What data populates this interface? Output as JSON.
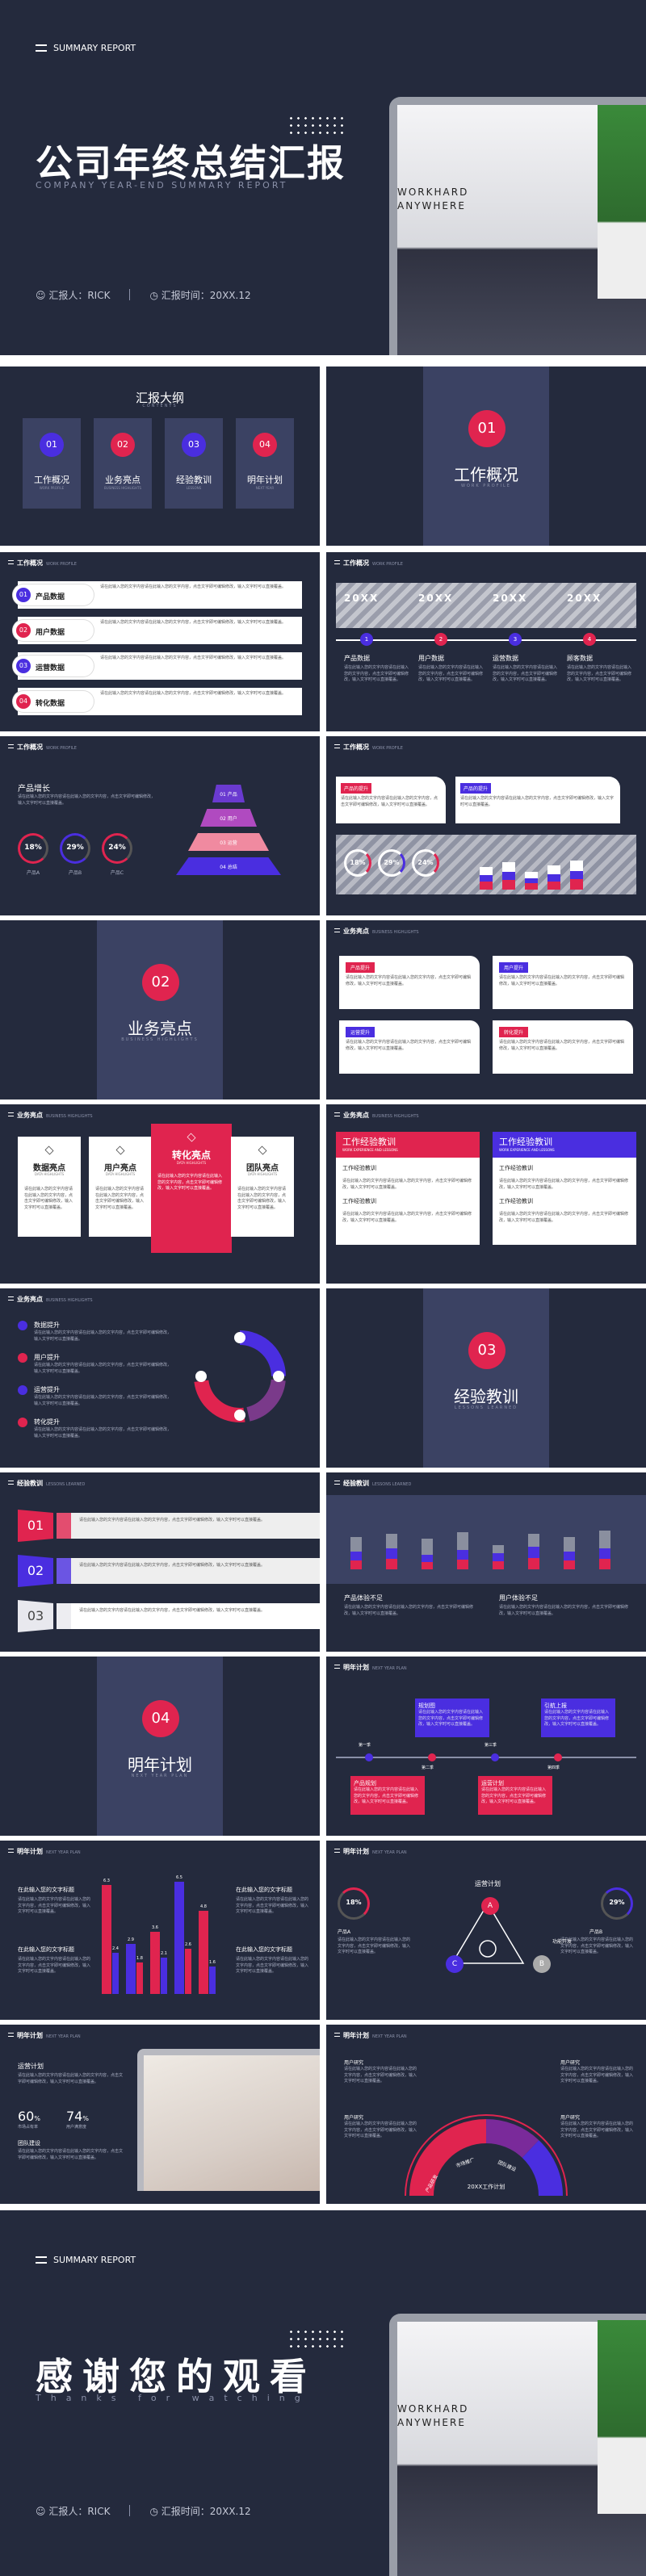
{
  "cover": {
    "menu": "SUMMARY REPORT",
    "title": "公司年终总结汇报",
    "subtitle": "COMPANY YEAR-END SUMMARY REPORT",
    "reporter": "汇报人：RICK",
    "date": "汇报时间：20XX.12",
    "screen_text": "WORKHARD ANYWHERE"
  },
  "agenda": {
    "title": "汇报大纲",
    "subtitle": "CONTENTS",
    "items": [
      {
        "num": "01",
        "label": "工作概况",
        "en": "WORK PROFILE"
      },
      {
        "num": "02",
        "label": "业务亮点",
        "en": "BUSINESS HIGHLIGHTS"
      },
      {
        "num": "03",
        "label": "经验教训",
        "en": "LESSONS"
      },
      {
        "num": "04",
        "label": "明年计划",
        "en": "NEXT YEAR"
      }
    ]
  },
  "section1": {
    "num": "01",
    "title": "工作概况",
    "en": "WORK PROFILE"
  },
  "section2": {
    "num": "02",
    "title": "业务亮点",
    "en": "BUSINESS HIGHLIGHTS"
  },
  "section3": {
    "num": "03",
    "title": "经验教训",
    "en": "LESSONS LEARNED"
  },
  "section4": {
    "num": "04",
    "title": "明年计划",
    "en": "NEXT YEAR PLAN"
  },
  "h_work": "工作概况",
  "h_work_en": "WORK PROFILE",
  "h_biz": "业务亮点",
  "h_biz_en": "BUSINESS HIGHLIGHTS",
  "h_lesson": "经验教训",
  "h_lesson_en": "LESSONS LEARNED",
  "h_plan": "明年计划",
  "h_plan_en": "NEXT YEAR PLAN",
  "body": "请在此输入您的文字内容请在此输入您的文字内容，点击文字即可编辑修改，输入文字时可以直接覆盖。",
  "s3": {
    "items": [
      {
        "n": "01",
        "label": "产品数据"
      },
      {
        "n": "02",
        "label": "用户数据"
      },
      {
        "n": "03",
        "label": "运营数据"
      },
      {
        "n": "04",
        "label": "转化数据"
      }
    ]
  },
  "s4": {
    "years": [
      "20XX",
      "20XX",
      "20XX",
      "20XX"
    ],
    "labels": [
      "产品数据",
      "用户数据",
      "运营数据",
      "顾客数据"
    ],
    "nums": [
      "1",
      "2",
      "3",
      "4"
    ]
  },
  "s5": {
    "title": "产品增长",
    "pct": [
      "18%",
      "29%",
      "24%"
    ],
    "plabels": [
      "产品A",
      "产品B",
      "产品C"
    ],
    "pyr": [
      "01 产品",
      "02 用户",
      "03 运营",
      "04 总结"
    ]
  },
  "s6": {
    "c1": "产品的提升",
    "c2": "产品的提升",
    "pct": [
      "18%",
      "29%",
      "24%"
    ]
  },
  "s8": {
    "cards": [
      "产品提升",
      "用户提升",
      "运营提升",
      "转化提升"
    ]
  },
  "s9": {
    "cols": [
      "数据亮点",
      "用户亮点",
      "转化亮点",
      "团队亮点"
    ],
    "en": "DATA HIGHLIGHTS"
  },
  "s10": {
    "t1": "工作经验教训",
    "t2": "工作经验教训",
    "en": "WORK EXPERIENCE AND LESSONS",
    "sub": [
      "工作经验教训",
      "工作经验教训"
    ]
  },
  "s11": {
    "items": [
      "数据提升",
      "用户提升",
      "运营提升",
      "转化提升"
    ]
  },
  "s13": {
    "nums": [
      "01",
      "02",
      "03"
    ]
  },
  "s14": {
    "l1": "产品体验不足",
    "l2": "用户体验不足"
  },
  "s16": {
    "b1": "规划图",
    "b2": "引航上报",
    "b3": "产品规划",
    "b4": "运营计划",
    "q": [
      "第一季",
      "第二季",
      "第三季",
      "第四季"
    ]
  },
  "s17": {
    "labels": [
      "在此输入您的文字标题",
      "在此输入您的文字标题",
      "在此输入您的文字标题",
      "在此输入您的文字标题"
    ]
  },
  "s18": {
    "title": "运营计划",
    "pct": [
      "18%",
      "29%"
    ],
    "labels": [
      "产品A",
      "产品B"
    ],
    "nodes": [
      "A",
      "B",
      "C"
    ],
    "tag": "功能开发"
  },
  "s19": {
    "title": "运营计划",
    "n1": "60",
    "u1": "%",
    "n2": "74",
    "u2": "%",
    "l1": "市场占有率",
    "l2": "用户满意度",
    "sub": "团队建设"
  },
  "s20": {
    "center": "20XX工作计划",
    "segs": [
      "产品研发",
      "市场推广",
      "团队建设"
    ],
    "labels": [
      "用户研究",
      "用户研究",
      "用户研究",
      "用户研究"
    ]
  },
  "end": {
    "menu": "SUMMARY REPORT",
    "title": "感谢您的观看",
    "subtitle": "Thanks for watching",
    "reporter": "汇报人：RICK",
    "date": "汇报时间：20XX.12",
    "screen_text": "WORKHARD ANYWHERE"
  },
  "chart_data": [
    {
      "type": "bar",
      "categories": [
        "1",
        "2",
        "3",
        "4",
        "5"
      ],
      "values": [
        6.3,
        2.9,
        3.6,
        6.5,
        4.8
      ],
      "secondary": [
        2.4,
        1.8,
        2.1,
        2.6,
        1.6
      ]
    }
  ],
  "colors": {
    "navy": "#242a3d",
    "pink": "#e0244f",
    "purple": "#4a2ee0"
  }
}
